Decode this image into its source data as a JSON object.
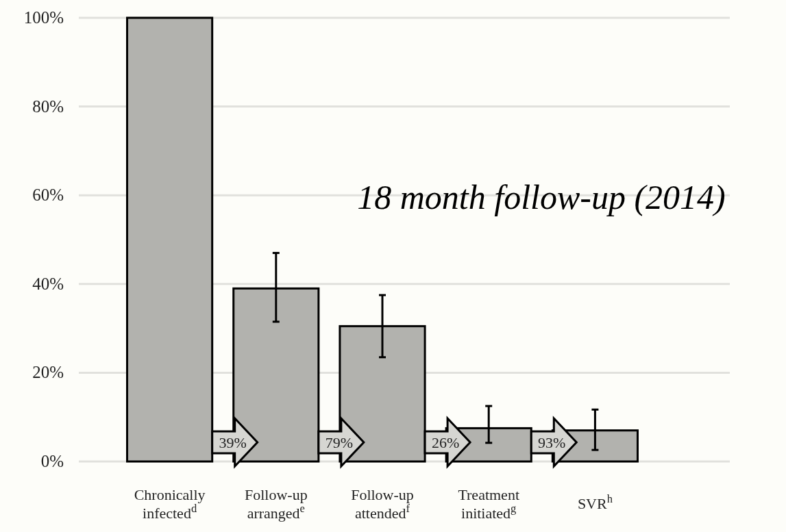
{
  "chart_data": {
    "type": "bar",
    "title": "18 month follow-up (2014)",
    "categories": [
      "Chronically infected$^{d}$",
      "Follow-up arranged$^{e}$",
      "Follow-up attended$^{f}$",
      "Treatment initiated$^{g}$",
      "SVR$^{h}$"
    ],
    "values": [
      100,
      39,
      30.5,
      7.5,
      7
    ],
    "errors": [
      null,
      [
        31.5,
        47
      ],
      [
        23.5,
        37.5
      ],
      [
        4.2,
        12.5
      ],
      [
        2.6,
        11.7
      ]
    ],
    "color": "#b2b2ae",
    "ylim": [
      0,
      100
    ],
    "yticks": [
      {
        "value": 0,
        "label": "0%"
      },
      {
        "value": 20,
        "label": "20%"
      },
      {
        "value": 40,
        "label": "40%"
      },
      {
        "value": 60,
        "label": "60%"
      },
      {
        "value": 80,
        "label": "80%"
      },
      {
        "value": 100,
        "label": "100%"
      }
    ],
    "grid": "y",
    "annotations": [
      "39%",
      "79%",
      "26%",
      "93%"
    ]
  }
}
